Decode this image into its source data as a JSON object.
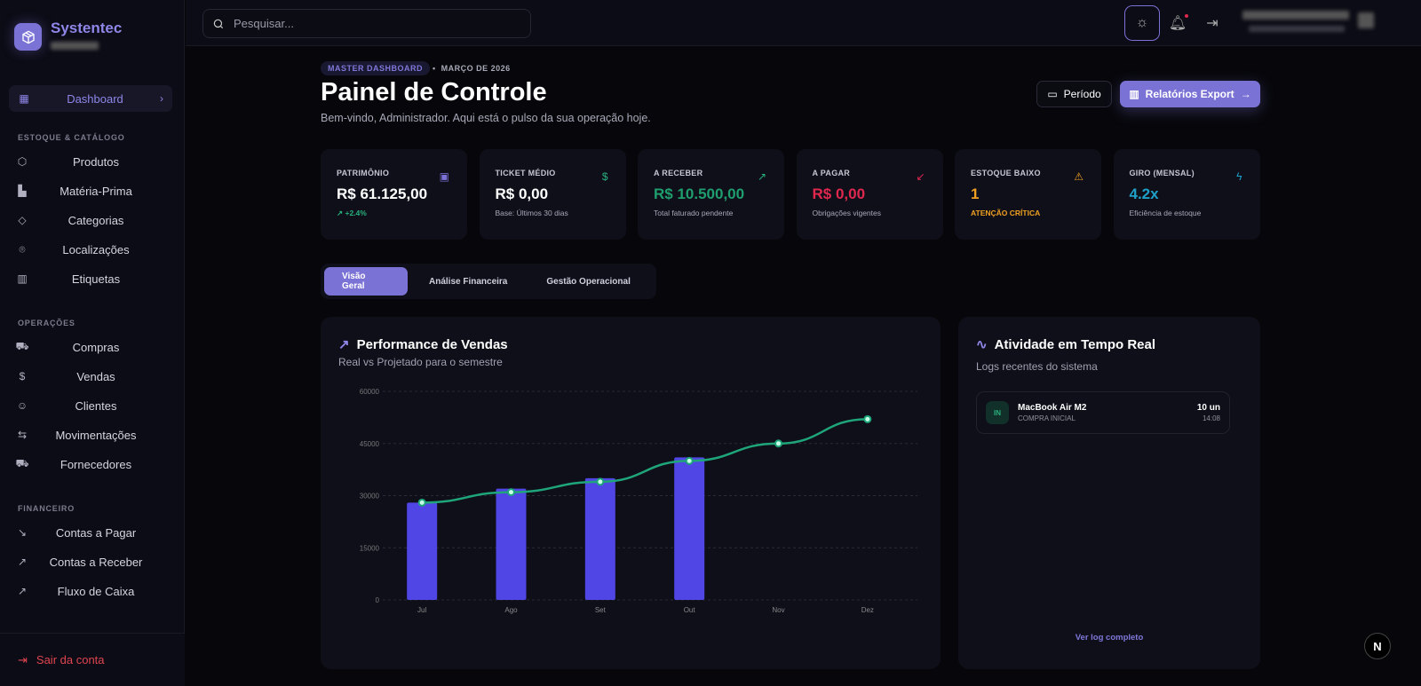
{
  "app": {
    "name": "Systentec"
  },
  "search": {
    "placeholder": "Pesquisar..."
  },
  "sidebar": {
    "active": {
      "label": "Dashboard",
      "icon": "dashboard-grid-icon"
    },
    "sections": [
      {
        "title": "ESTOQUE & CATÁLOGO",
        "items": [
          {
            "label": "Produtos",
            "icon": "box-icon"
          },
          {
            "label": "Matéria-Prima",
            "icon": "factory-icon"
          },
          {
            "label": "Categorias",
            "icon": "tags-icon"
          },
          {
            "label": "Localizações",
            "icon": "map-pin-icon"
          },
          {
            "label": "Etiquetas",
            "icon": "barcode-icon"
          }
        ]
      },
      {
        "title": "OPERAÇÕES",
        "items": [
          {
            "label": "Compras",
            "icon": "cart-icon"
          },
          {
            "label": "Vendas",
            "icon": "dollar-circle-icon"
          },
          {
            "label": "Clientes",
            "icon": "users-icon"
          },
          {
            "label": "Movimentações",
            "icon": "arrows-icon"
          },
          {
            "label": "Fornecedores",
            "icon": "truck-icon"
          }
        ]
      },
      {
        "title": "FINANCEIRO",
        "items": [
          {
            "label": "Contas a Pagar",
            "icon": "arrow-down-right-icon"
          },
          {
            "label": "Contas a Receber",
            "icon": "arrow-up-right-icon"
          },
          {
            "label": "Fluxo de Caixa",
            "icon": "trending-up-icon"
          }
        ]
      }
    ],
    "logout": "Sair da conta"
  },
  "header": {
    "badge": "MASTER DASHBOARD",
    "date": "MARÇO DE 2026",
    "title": "Painel de Controle",
    "subtitle": "Bem-vindo, Administrador. Aqui está o pulso da sua operação hoje.",
    "period_button": "Período",
    "export_button": "Relatórios Export"
  },
  "kpis": [
    {
      "title": "PATRIMÔNIO",
      "value": "R$ 61.125,00",
      "sub": "+2.4%",
      "icon": "wallet-icon",
      "color": "#ffffff",
      "icon_color": "#7b72d6",
      "sub_color": "#28b17d"
    },
    {
      "title": "TICKET MÉDIO",
      "value": "R$ 0,00",
      "sub": "Base: Últimos 30 dias",
      "icon": "dollar-icon",
      "color": "#ffffff",
      "icon_color": "#28b17d",
      "sub_color": "#a8a8b8"
    },
    {
      "title": "A RECEBER",
      "value": "R$ 10.500,00",
      "sub": "Total faturado pendente",
      "icon": "arrow-up-right-icon",
      "color": "#1f9e6e",
      "icon_color": "#28b17d",
      "sub_color": "#a8a8b8"
    },
    {
      "title": "A PAGAR",
      "value": "R$ 0,00",
      "sub": "Obrigações vigentes",
      "icon": "arrow-down-left-icon",
      "color": "#e0284f",
      "icon_color": "#e0284f",
      "sub_color": "#a8a8b8"
    },
    {
      "title": "ESTOQUE BAIXO",
      "value": "1",
      "sub": "ATENÇÃO CRÍTICA",
      "icon": "warning-icon",
      "color": "#f0a020",
      "icon_color": "#f0a020",
      "sub_color": "#f0a020"
    },
    {
      "title": "GIRO (MENSAL)",
      "value": "4.2x",
      "sub": "Eficiência de estoque",
      "icon": "lightning-icon",
      "color": "#1fa0c8",
      "icon_color": "#1fa0c8",
      "sub_color": "#a8a8b8"
    }
  ],
  "tabs": [
    {
      "label": "Visão Geral",
      "active": true
    },
    {
      "label": "Análise Financeira"
    },
    {
      "label": "Gestão Operacional"
    }
  ],
  "sales": {
    "title": "Performance de Vendas",
    "subtitle": "Real vs Projetado para o semestre"
  },
  "activity": {
    "title": "Atividade em Tempo Real",
    "subtitle": "Logs recentes do sistema",
    "logs": [
      {
        "badge": "IN",
        "name": "MacBook Air M2",
        "type": "COMPRA INICIAL",
        "qty": "10 un",
        "time": "14:08"
      }
    ],
    "link": "Ver log completo"
  },
  "chart_data": {
    "type": "bar",
    "categories": [
      "Jul",
      "Ago",
      "Set",
      "Out",
      "Nov",
      "Dez"
    ],
    "ylim": [
      0,
      60000
    ],
    "yticks": [
      "0",
      "15000",
      "30000",
      "45000",
      "60000"
    ],
    "grid": true,
    "series": [
      {
        "type": "bar",
        "values": [
          28000,
          32000,
          35000,
          41000,
          null,
          null
        ],
        "color": "#4f46e5"
      },
      {
        "type": "line",
        "values": [
          28000,
          31000,
          34000,
          40000,
          45000,
          52000
        ],
        "color": "#1fa57a"
      }
    ]
  },
  "colors": {
    "accent": "#7b72d6",
    "bg": "#07070b",
    "panel": "#0f0f1a"
  }
}
